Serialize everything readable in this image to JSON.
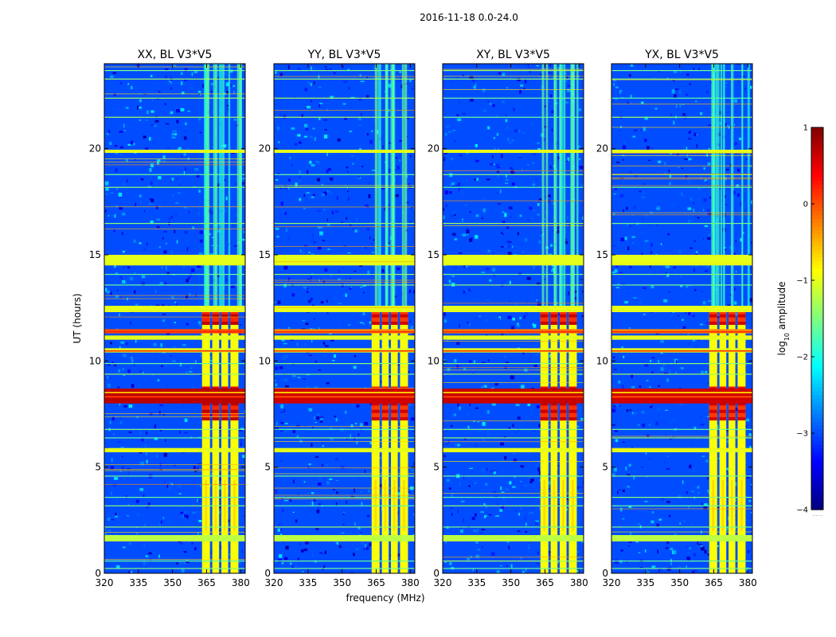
{
  "figure": {
    "suptitle": "2016-11-18 0.0-24.0",
    "xlabel": "frequency (MHz)",
    "ylabel": "UT (hours)"
  },
  "colorbar": {
    "label_prefix": "log",
    "label_sub": "10",
    "label_suffix": " amplitude",
    "ticks": [
      "1",
      "0",
      "−1",
      "−2",
      "−3",
      "−4"
    ],
    "range": [
      -4,
      1
    ],
    "colormap": "jet",
    "bottom_text": "......"
  },
  "chart_data": {
    "type": "heatmap",
    "colormap": "jet",
    "value_label": "log10 amplitude",
    "value_range": [
      -4,
      1
    ],
    "xlim": [
      320,
      382
    ],
    "ylim": [
      0,
      24
    ],
    "x_ticks": [
      "320",
      "335",
      "350",
      "365",
      "380"
    ],
    "x_tick_values": [
      320,
      335,
      350,
      365,
      380
    ],
    "y_ticks": [
      "0",
      "5",
      "10",
      "15",
      "20"
    ],
    "y_tick_values": [
      0,
      5,
      10,
      15,
      20
    ],
    "background_level": -3.0,
    "panels": [
      {
        "title": "XX, BL V3*V5",
        "strong_band_level": 0.7,
        "rfi_level": -0.2
      },
      {
        "title": "YY, BL V3*V5",
        "strong_band_level": 0.6,
        "rfi_level": -0.5
      },
      {
        "title": "XY, BL V3*V5",
        "strong_band_level": 0.65,
        "rfi_level": -0.4
      },
      {
        "title": "YX, BL V3*V5",
        "strong_band_level": 0.6,
        "rfi_level": -0.5
      }
    ],
    "features": {
      "wideband_rfi_hours": [
        {
          "t0": 14.5,
          "t1": 15.0,
          "level": -1.0
        },
        {
          "t0": 12.3,
          "t1": 12.6,
          "level": -1.0
        },
        {
          "t0": 11.3,
          "t1": 11.5,
          "level": 0.1
        },
        {
          "t0": 11.0,
          "t1": 11.2,
          "level": -1.0
        },
        {
          "t0": 10.4,
          "t1": 10.6,
          "level": -1.0
        },
        {
          "t0": 8.0,
          "t1": 8.7,
          "level": 0.6
        },
        {
          "t0": 5.7,
          "t1": 5.9,
          "level": -1.0
        },
        {
          "t0": 1.5,
          "t1": 1.8,
          "level": -1.2
        },
        {
          "t0": 19.8,
          "t1": 19.95,
          "level": -1.0
        }
      ],
      "channel_band_mhz": [
        363,
        380
      ],
      "channel_columns_mhz": [
        [
          363,
          366.5
        ],
        [
          367.5,
          370.5
        ],
        [
          371.5,
          374.5
        ],
        [
          375.5,
          379
        ]
      ],
      "active_hours": [
        0,
        12.6
      ],
      "saturated_hours": [
        [
          7.2,
          8.8
        ],
        [
          11.7,
          12.6
        ]
      ],
      "faint_stripe_hours": [
        13.6,
        14.1,
        16.5,
        18.2,
        18.8,
        21.5,
        22.4,
        23.3,
        23.7,
        3.2,
        3.6,
        4.6,
        6.4,
        6.8,
        9.4,
        9.9,
        2.2,
        0.6,
        0.25
      ]
    }
  }
}
